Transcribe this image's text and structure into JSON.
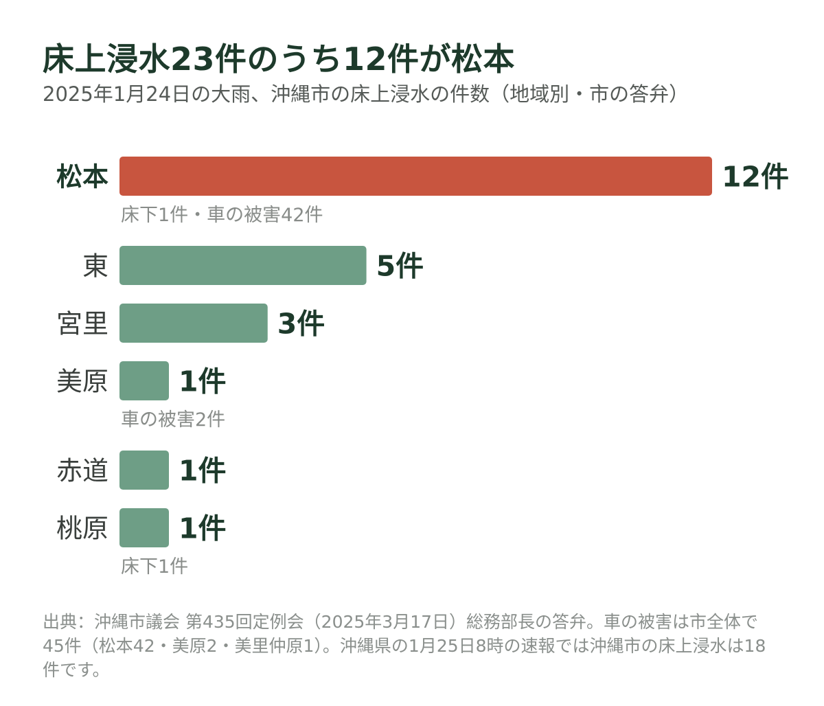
{
  "title": "床上浸水23件のうち12件が松本",
  "subtitle": "2025年1月24日の大雨、沖縄市の床上浸水の件数（地域別・市の答弁）",
  "footnote": "出典：沖縄市議会 第435回定例会（2025年3月17日）総務部長の答弁。車の被害は市全体で45件（松本42・美原2・美里仲原1）。沖縄県の1月25日8時の速報では沖縄市の床上浸水は18件です。",
  "colors": {
    "highlight": "#c8553f",
    "default": "#6e9e86",
    "label_text": "#1d3a2b",
    "note_text": "#888c89"
  },
  "chart_data": {
    "type": "bar",
    "orientation": "horizontal",
    "unit": "件",
    "categories": [
      "松本",
      "東",
      "宮里",
      "美原",
      "赤道",
      "桃原"
    ],
    "values": [
      12,
      5,
      3,
      1,
      1,
      1
    ],
    "value_labels": [
      "12件",
      "5件",
      "3件",
      "1件",
      "1件",
      "1件"
    ],
    "highlight": [
      "松本"
    ],
    "notes": [
      "床下1件・車の被害42件",
      "",
      "",
      "車の被害2件",
      "",
      "床下1件"
    ],
    "xlim": [
      0,
      12
    ],
    "grid": false,
    "legend": "none"
  }
}
